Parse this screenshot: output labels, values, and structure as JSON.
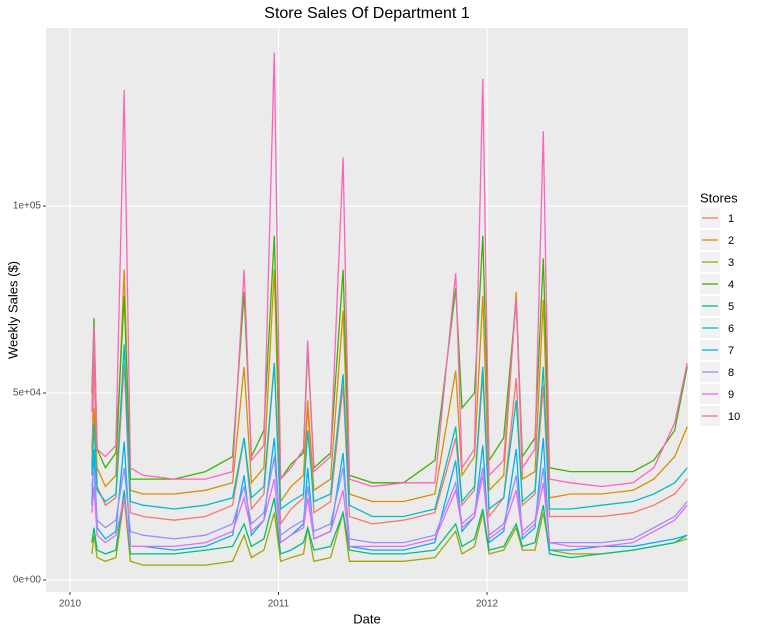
{
  "chart_data": {
    "type": "line",
    "title": "Store Sales Of Department 1",
    "x_label": "Date",
    "y_label": "Weekly Sales ($)",
    "legend_title": "Stores",
    "legend": "right",
    "grid": true,
    "xlim": [
      2009.885,
      2012.964
    ],
    "xticks": [
      2010,
      2011,
      2012
    ],
    "ylim": [
      -3200,
      147600
    ],
    "yticks": [
      {
        "value": 0,
        "label": "0e+00"
      },
      {
        "value": 50000,
        "label": "5e+04"
      },
      {
        "value": 100000,
        "label": "1e+05"
      }
    ],
    "x": [
      2010.105,
      2010.115,
      2010.13,
      2010.17,
      2010.22,
      2010.26,
      2010.29,
      2010.35,
      2010.5,
      2010.65,
      2010.78,
      2010.835,
      2010.87,
      2010.93,
      2010.98,
      2011.01,
      2011.06,
      2011.12,
      2011.14,
      2011.17,
      2011.25,
      2011.31,
      2011.34,
      2011.45,
      2011.6,
      2011.75,
      2011.85,
      2011.88,
      2011.94,
      2011.98,
      2012.01,
      2012.08,
      2012.14,
      2012.17,
      2012.23,
      2012.27,
      2012.3,
      2012.4,
      2012.55,
      2012.7,
      2012.8,
      2012.9,
      2012.96
    ],
    "series": [
      {
        "name": "1",
        "color": "#F8766D",
        "values": [
          30000,
          60000,
          25000,
          20000,
          22000,
          58000,
          18000,
          17000,
          16000,
          17000,
          20000,
          38000,
          19000,
          23000,
          58000,
          15000,
          19000,
          22000,
          47000,
          18000,
          21000,
          52000,
          17000,
          15000,
          16000,
          18000,
          38000,
          20000,
          24000,
          55000,
          17000,
          22000,
          54000,
          20000,
          23000,
          52000,
          17000,
          17000,
          17000,
          18000,
          20000,
          23000,
          27000
        ]
      },
      {
        "name": "2",
        "color": "#D89000",
        "values": [
          35000,
          46000,
          30000,
          25000,
          28000,
          83000,
          24000,
          23000,
          23000,
          24000,
          26000,
          57000,
          26000,
          30000,
          83000,
          21000,
          25000,
          28000,
          48000,
          24000,
          27000,
          72000,
          23000,
          21000,
          21000,
          23000,
          56000,
          28000,
          33000,
          76000,
          24000,
          28000,
          77000,
          27000,
          29000,
          75000,
          22000,
          23000,
          23000,
          24000,
          27000,
          33000,
          41000
        ]
      },
      {
        "name": "3",
        "color": "#A3A500",
        "values": [
          7000,
          12000,
          6000,
          5000,
          6000,
          22000,
          5000,
          4000,
          4000,
          4000,
          5000,
          12000,
          6000,
          8000,
          18000,
          5000,
          6000,
          7000,
          14000,
          5000,
          6000,
          18000,
          5000,
          5000,
          5000,
          6000,
          13000,
          7000,
          9000,
          18000,
          7000,
          8000,
          14000,
          8000,
          8000,
          18000,
          8000,
          7000,
          7000,
          8000,
          9000,
          10000,
          11000
        ]
      },
      {
        "name": "4",
        "color": "#39B600",
        "values": [
          50000,
          70000,
          35000,
          30000,
          34000,
          76000,
          27000,
          27000,
          27000,
          29000,
          33000,
          77000,
          33000,
          40000,
          92000,
          27000,
          31000,
          34000,
          62000,
          30000,
          34000,
          83000,
          28000,
          26000,
          26000,
          32000,
          78000,
          46000,
          50000,
          92000,
          32000,
          38000,
          75000,
          33000,
          38000,
          86000,
          30000,
          29000,
          29000,
          29000,
          32000,
          40000,
          57000
        ]
      },
      {
        "name": "5",
        "color": "#00BF7D",
        "values": [
          10000,
          14000,
          8000,
          7000,
          8000,
          24000,
          7000,
          7000,
          7000,
          8000,
          9000,
          15000,
          9000,
          11000,
          22000,
          7000,
          8000,
          10000,
          14000,
          8000,
          9000,
          18000,
          8000,
          7000,
          7000,
          8000,
          15000,
          9000,
          11000,
          19000,
          8000,
          9000,
          15000,
          9000,
          10000,
          20000,
          7000,
          6000,
          7000,
          8000,
          9000,
          10000,
          12000
        ]
      },
      {
        "name": "6",
        "color": "#00BFC4",
        "values": [
          28000,
          42000,
          24000,
          21000,
          23000,
          63000,
          21000,
          20000,
          19000,
          20000,
          22000,
          38000,
          22000,
          25000,
          58000,
          19000,
          21000,
          23000,
          40000,
          21000,
          23000,
          55000,
          20000,
          17000,
          17000,
          19000,
          41000,
          21000,
          25000,
          57000,
          19000,
          22000,
          48000,
          21000,
          24000,
          57000,
          19000,
          19000,
          20000,
          21000,
          23000,
          26000,
          30000
        ]
      },
      {
        "name": "7",
        "color": "#00B0F6",
        "values": [
          20000,
          35000,
          14000,
          11000,
          13000,
          37000,
          9000,
          9000,
          8000,
          9000,
          12000,
          28000,
          12000,
          16000,
          38000,
          10000,
          12000,
          15000,
          30000,
          11000,
          13000,
          34000,
          9000,
          8000,
          8000,
          10000,
          32000,
          13000,
          17000,
          36000,
          10000,
          13000,
          35000,
          11000,
          14000,
          38000,
          8000,
          8000,
          9000,
          9000,
          10000,
          11000,
          12000
        ]
      },
      {
        "name": "8",
        "color": "#9590FF",
        "values": [
          25000,
          30000,
          16000,
          14000,
          16000,
          30000,
          13000,
          12000,
          11000,
          12000,
          15000,
          25000,
          15000,
          18000,
          33000,
          12000,
          14000,
          16000,
          25000,
          13000,
          15000,
          30000,
          11000,
          10000,
          10000,
          12000,
          26000,
          15000,
          18000,
          30000,
          12000,
          15000,
          28000,
          13000,
          16000,
          30000,
          10000,
          10000,
          10000,
          11000,
          14000,
          17000,
          21000
        ]
      },
      {
        "name": "9",
        "color": "#E76BF3",
        "values": [
          18000,
          25000,
          12000,
          10000,
          12000,
          22000,
          9000,
          9000,
          9000,
          10000,
          13000,
          22000,
          13000,
          16000,
          27000,
          10000,
          12000,
          14000,
          22000,
          11000,
          13000,
          24000,
          9000,
          9000,
          9000,
          11000,
          24000,
          14000,
          17000,
          28000,
          11000,
          14000,
          24000,
          12000,
          15000,
          26000,
          10000,
          9000,
          9000,
          10000,
          13000,
          16000,
          20000
        ]
      },
      {
        "name": "10",
        "color": "#FF62BC",
        "values": [
          45000,
          68000,
          35000,
          33000,
          36000,
          131000,
          30000,
          28000,
          27000,
          27000,
          29000,
          83000,
          32000,
          36000,
          141000,
          27000,
          30000,
          35000,
          64000,
          29000,
          33000,
          113000,
          27000,
          25000,
          26000,
          26000,
          82000,
          30000,
          35000,
          134000,
          28000,
          32000,
          75000,
          30000,
          35000,
          120000,
          27000,
          26000,
          25000,
          26000,
          30000,
          42000,
          58000
        ]
      }
    ]
  }
}
